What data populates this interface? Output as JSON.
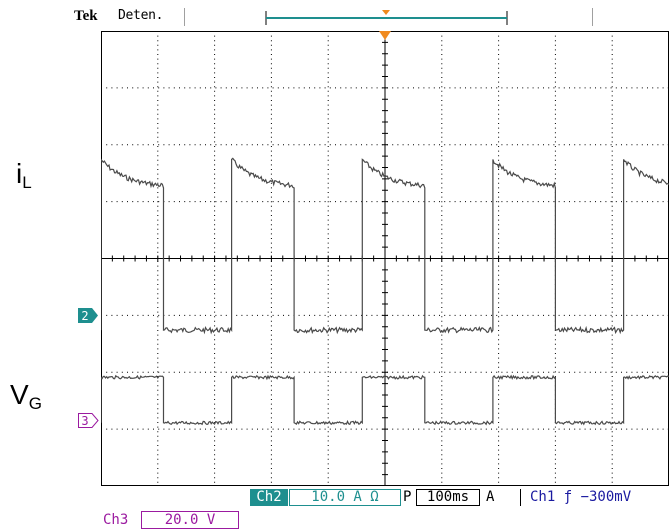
{
  "header": {
    "brand": "Tek",
    "acq_state": "Deten."
  },
  "labels": {
    "current_main": "i",
    "current_sub": "L",
    "gate_main": "V",
    "gate_sub": "G"
  },
  "markers": {
    "ch2": "2",
    "ch3": "3"
  },
  "readouts": {
    "ch2_tag": "Ch2",
    "ch2_scale": "10.0 A Ω",
    "acq_mode": "P",
    "timebase": "100ms",
    "trigger_mode": "A",
    "trigger_source": "Ch1 ƒ −300mV",
    "ch3_tag": "Ch3",
    "ch3_scale": "20.0 V"
  },
  "colors": {
    "trace": "#4a4a4a",
    "grid": "#000000",
    "trigger": "#f08a1e",
    "ch2": "#1e8f8f",
    "ch3": "#9b1aa0",
    "trigger_text": "#1a1aa0"
  },
  "chart_data": {
    "type": "line",
    "divisions": {
      "x": 10,
      "y": 8
    },
    "time_per_division": "100ms",
    "series": [
      {
        "channel": "Ch2",
        "units": "A",
        "volts_per_div": 10.0,
        "period_div": 2.3,
        "high_start_div": 2.7,
        "high_end_div": 2.2,
        "low_div": -0.3,
        "rise_times_div": [
          0.0,
          2.3,
          4.6,
          6.9,
          9.2
        ],
        "fall_times_div": [
          1.1,
          3.4,
          5.7,
          8.0
        ]
      },
      {
        "channel": "Ch3",
        "units": "V",
        "volts_per_div": 20.0,
        "high_div": 0.75,
        "low_div": -0.05,
        "rise_times_div": [
          0.0,
          2.3,
          4.6,
          6.9,
          9.2
        ],
        "fall_times_div": [
          1.1,
          3.4,
          5.7,
          8.0
        ]
      }
    ]
  }
}
